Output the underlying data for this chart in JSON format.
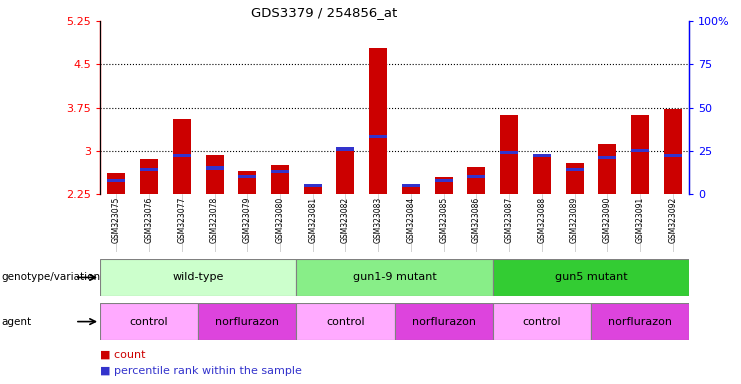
{
  "title": "GDS3379 / 254856_at",
  "samples": [
    "GSM323075",
    "GSM323076",
    "GSM323077",
    "GSM323078",
    "GSM323079",
    "GSM323080",
    "GSM323081",
    "GSM323082",
    "GSM323083",
    "GSM323084",
    "GSM323085",
    "GSM323086",
    "GSM323087",
    "GSM323088",
    "GSM323089",
    "GSM323090",
    "GSM323091",
    "GSM323092"
  ],
  "counts": [
    2.62,
    2.85,
    3.55,
    2.92,
    2.65,
    2.75,
    2.42,
    3.02,
    4.78,
    2.42,
    2.55,
    2.72,
    3.62,
    2.95,
    2.78,
    3.12,
    3.62,
    3.72
  ],
  "percentiles": [
    8,
    14,
    22,
    15,
    10,
    13,
    5,
    26,
    33,
    5,
    8,
    10,
    24,
    22,
    14,
    21,
    25,
    22
  ],
  "ymin": 2.25,
  "ymax": 5.25,
  "yticks": [
    2.25,
    3.0,
    3.75,
    4.5,
    5.25
  ],
  "ytick_labels": [
    "2.25",
    "3",
    "3.75",
    "4.5",
    "5.25"
  ],
  "right_yticks": [
    0,
    25,
    50,
    75,
    100
  ],
  "right_ytick_labels": [
    "0",
    "25",
    "50",
    "75",
    "100%"
  ],
  "bar_color": "#cc0000",
  "percentile_color": "#3333cc",
  "bar_width": 0.55,
  "genotype_groups": [
    {
      "label": "wild-type",
      "start": 0,
      "end": 6,
      "color": "#ccffcc"
    },
    {
      "label": "gun1-9 mutant",
      "start": 6,
      "end": 12,
      "color": "#88ee88"
    },
    {
      "label": "gun5 mutant",
      "start": 12,
      "end": 18,
      "color": "#33cc33"
    }
  ],
  "agent_groups": [
    {
      "label": "control",
      "start": 0,
      "end": 3,
      "color": "#ffaaff"
    },
    {
      "label": "norflurazon",
      "start": 3,
      "end": 6,
      "color": "#dd44dd"
    },
    {
      "label": "control",
      "start": 6,
      "end": 9,
      "color": "#ffaaff"
    },
    {
      "label": "norflurazon",
      "start": 9,
      "end": 12,
      "color": "#dd44dd"
    },
    {
      "label": "control",
      "start": 12,
      "end": 15,
      "color": "#ffaaff"
    },
    {
      "label": "norflurazon",
      "start": 15,
      "end": 18,
      "color": "#dd44dd"
    }
  ],
  "legend_count_color": "#cc0000",
  "legend_percentile_color": "#3333cc",
  "grid_color": "#000000",
  "background_color": "#ffffff",
  "plot_bg": "#ffffff",
  "xticklabel_bg": "#dddddd"
}
